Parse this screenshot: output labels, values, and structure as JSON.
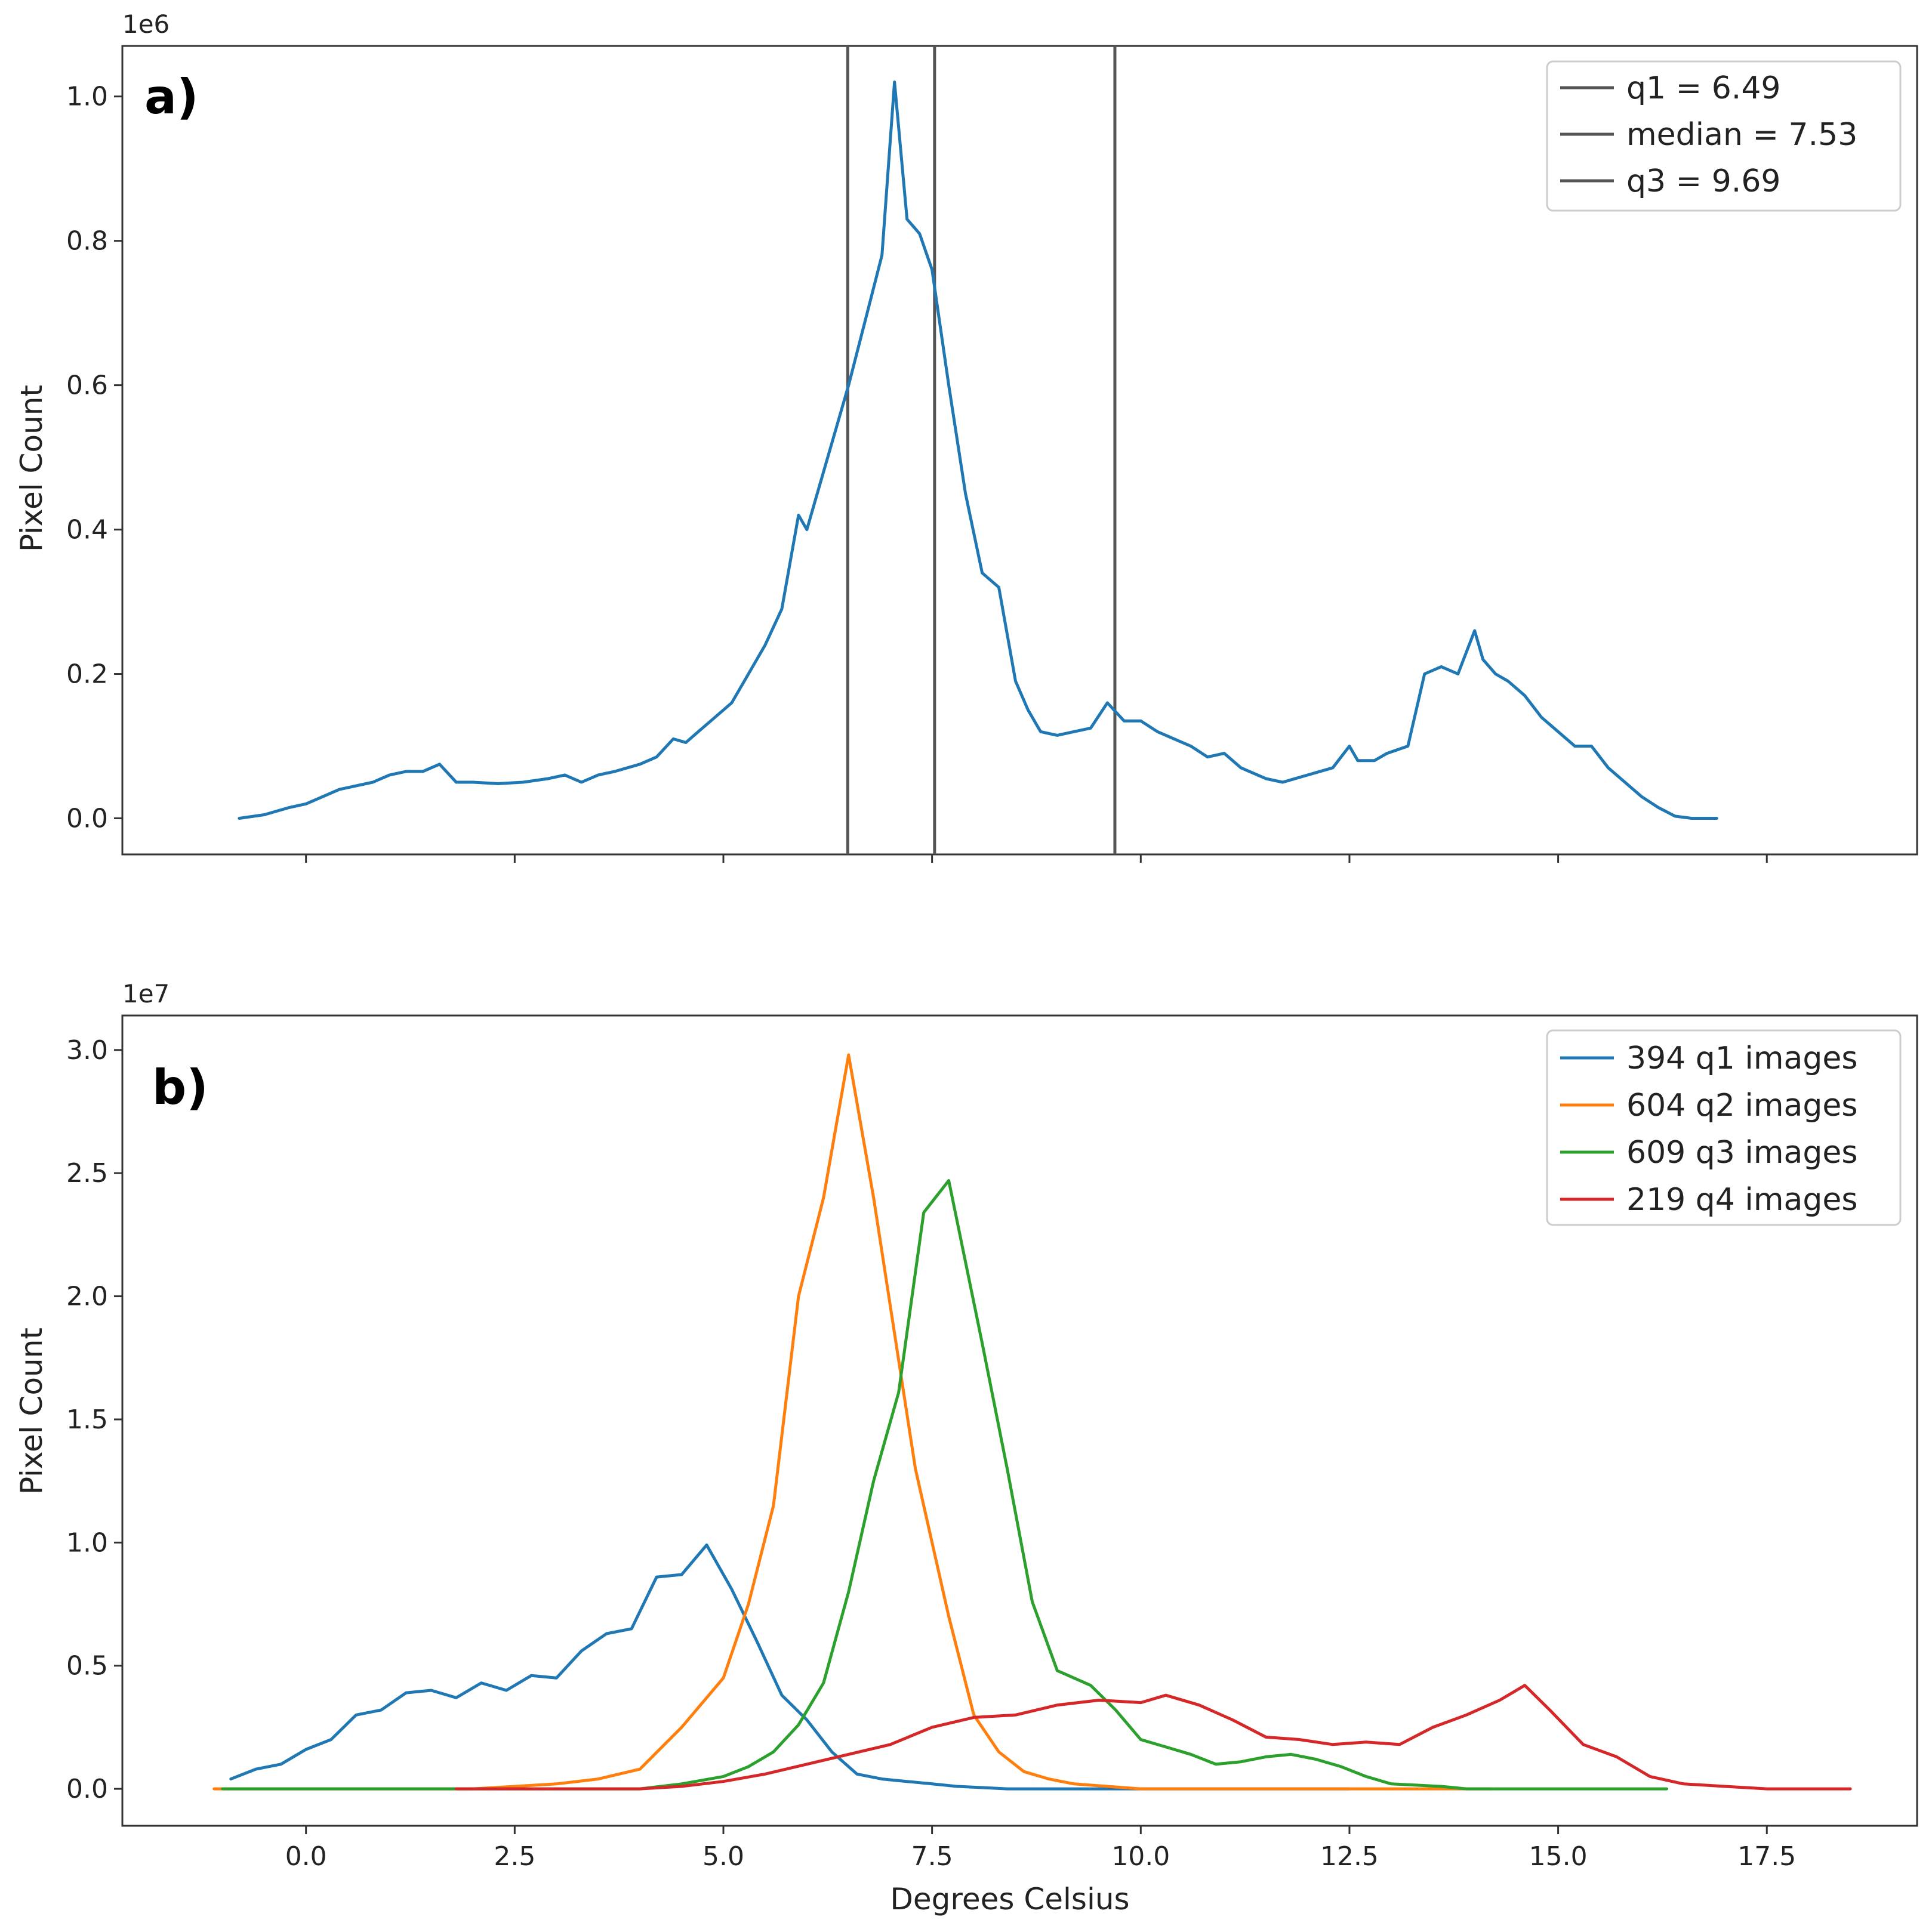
{
  "chart_data": [
    {
      "type": "line",
      "panel_label": "a)",
      "xlabel": "",
      "ylabel": "Pixel Count",
      "y_offset_label": "1e6",
      "xlim": [
        -2.2,
        19.3
      ],
      "ylim": [
        -0.05,
        1.07
      ],
      "y_ticks": [
        0.0,
        0.2,
        0.4,
        0.6,
        0.8,
        1.0
      ],
      "y_tick_labels": [
        "0.0",
        "0.2",
        "0.4",
        "0.6",
        "0.8",
        "1.0"
      ],
      "x_ticks": [
        0.0,
        2.5,
        5.0,
        7.5,
        10.0,
        12.5,
        15.0,
        17.5
      ],
      "show_x_tick_labels": false,
      "legend": {
        "position": "top-right",
        "entries": [
          "q1 = 6.49",
          "median = 7.53",
          "q3 = 9.69"
        ]
      },
      "vlines": [
        {
          "name": "q1",
          "x": 6.49,
          "color": "#555555"
        },
        {
          "name": "median",
          "x": 7.53,
          "color": "#555555"
        },
        {
          "name": "q3",
          "x": 9.69,
          "color": "#555555"
        }
      ],
      "series": [
        {
          "name": "pixel count",
          "color": "#1f77b4",
          "x": [
            -0.8,
            -0.5,
            -0.2,
            0.0,
            0.2,
            0.4,
            0.6,
            0.8,
            1.0,
            1.2,
            1.4,
            1.6,
            1.8,
            2.0,
            2.3,
            2.6,
            2.9,
            3.1,
            3.3,
            3.5,
            3.7,
            4.0,
            4.2,
            4.4,
            4.55,
            4.7,
            4.9,
            5.1,
            5.3,
            5.5,
            5.7,
            5.9,
            6.0,
            6.15,
            6.3,
            6.5,
            6.7,
            6.9,
            7.05,
            7.2,
            7.35,
            7.5,
            7.7,
            7.9,
            8.1,
            8.3,
            8.5,
            8.65,
            8.8,
            9.0,
            9.2,
            9.4,
            9.6,
            9.8,
            10.0,
            10.2,
            10.4,
            10.6,
            10.8,
            11.0,
            11.2,
            11.4,
            11.5,
            11.7,
            12.0,
            12.3,
            12.5,
            12.6,
            12.8,
            12.95,
            13.2,
            13.4,
            13.6,
            13.8,
            14.0,
            14.1,
            14.25,
            14.4,
            14.6,
            14.8,
            15.0,
            15.2,
            15.4,
            15.6,
            15.8,
            16.0,
            16.2,
            16.4,
            16.6,
            16.9
          ],
          "y": [
            0.0,
            0.005,
            0.015,
            0.02,
            0.03,
            0.04,
            0.045,
            0.05,
            0.06,
            0.065,
            0.065,
            0.075,
            0.05,
            0.05,
            0.048,
            0.05,
            0.055,
            0.06,
            0.05,
            0.06,
            0.065,
            0.075,
            0.085,
            0.11,
            0.105,
            0.12,
            0.14,
            0.16,
            0.2,
            0.24,
            0.29,
            0.42,
            0.4,
            0.46,
            0.52,
            0.6,
            0.69,
            0.78,
            1.02,
            0.83,
            0.81,
            0.76,
            0.6,
            0.45,
            0.34,
            0.32,
            0.19,
            0.15,
            0.12,
            0.115,
            0.12,
            0.125,
            0.16,
            0.135,
            0.135,
            0.12,
            0.11,
            0.1,
            0.085,
            0.09,
            0.07,
            0.06,
            0.055,
            0.05,
            0.06,
            0.07,
            0.1,
            0.08,
            0.08,
            0.09,
            0.1,
            0.2,
            0.21,
            0.2,
            0.26,
            0.22,
            0.2,
            0.19,
            0.17,
            0.14,
            0.12,
            0.1,
            0.1,
            0.07,
            0.05,
            0.03,
            0.015,
            0.003,
            0.0,
            0.0
          ]
        }
      ]
    },
    {
      "type": "line",
      "panel_label": "b)",
      "xlabel": "Degrees Celsius",
      "ylabel": "Pixel Count",
      "y_offset_label": "1e7",
      "xlim": [
        -2.2,
        19.3
      ],
      "ylim": [
        -0.15,
        3.14
      ],
      "y_ticks": [
        0.0,
        0.5,
        1.0,
        1.5,
        2.0,
        2.5,
        3.0
      ],
      "y_tick_labels": [
        "0.0",
        "0.5",
        "1.0",
        "1.5",
        "2.0",
        "2.5",
        "3.0"
      ],
      "x_ticks": [
        0.0,
        2.5,
        5.0,
        7.5,
        10.0,
        12.5,
        15.0,
        17.5
      ],
      "x_tick_labels": [
        "0.0",
        "2.5",
        "5.0",
        "7.5",
        "10.0",
        "12.5",
        "15.0",
        "17.5"
      ],
      "show_x_tick_labels": true,
      "legend": {
        "position": "top-right"
      },
      "series": [
        {
          "name": "394 q1 images",
          "color": "#1f77b4",
          "x": [
            -0.9,
            -0.6,
            -0.3,
            0.0,
            0.3,
            0.6,
            0.9,
            1.2,
            1.5,
            1.8,
            2.1,
            2.4,
            2.7,
            3.0,
            3.3,
            3.6,
            3.9,
            4.2,
            4.5,
            4.8,
            5.1,
            5.4,
            5.7,
            6.0,
            6.3,
            6.6,
            6.9,
            7.2,
            7.5,
            7.8,
            8.1,
            8.4,
            8.7,
            9.0,
            9.5,
            10.0,
            10.5,
            11.0,
            11.5,
            12.0,
            12.5
          ],
          "y": [
            0.04,
            0.08,
            0.1,
            0.16,
            0.2,
            0.3,
            0.32,
            0.39,
            0.4,
            0.37,
            0.43,
            0.4,
            0.46,
            0.45,
            0.56,
            0.63,
            0.65,
            0.86,
            0.87,
            0.99,
            0.81,
            0.6,
            0.38,
            0.28,
            0.15,
            0.06,
            0.04,
            0.03,
            0.02,
            0.01,
            0.005,
            0.0,
            0.0,
            0.0,
            0.0,
            0.0,
            0.0,
            0.0,
            0.0,
            0.0,
            0.0
          ]
        },
        {
          "name": "604 q2 images",
          "color": "#ff7f0e",
          "x": [
            -1.1,
            -0.5,
            0.0,
            0.5,
            1.0,
            1.5,
            2.0,
            2.5,
            3.0,
            3.5,
            4.0,
            4.5,
            5.0,
            5.3,
            5.6,
            5.9,
            6.2,
            6.5,
            6.8,
            7.3,
            7.7,
            8.0,
            8.3,
            8.6,
            8.9,
            9.2,
            9.6,
            10.0,
            10.5,
            11.0,
            11.5,
            12.0,
            12.5,
            13.0,
            13.5,
            14.2
          ],
          "y": [
            0.0,
            0.0,
            0.0,
            0.0,
            0.0,
            0.0,
            0.0,
            0.01,
            0.02,
            0.04,
            0.08,
            0.25,
            0.45,
            0.75,
            1.15,
            2.0,
            2.4,
            2.98,
            2.4,
            1.3,
            0.7,
            0.3,
            0.15,
            0.07,
            0.04,
            0.02,
            0.01,
            0.0,
            0.0,
            0.0,
            0.0,
            0.0,
            0.0,
            0.0,
            0.0,
            0.0
          ]
        },
        {
          "name": "609 q3 images",
          "color": "#2ca02c",
          "x": [
            -1.0,
            0.0,
            1.0,
            2.0,
            3.0,
            4.0,
            4.5,
            5.0,
            5.3,
            5.6,
            5.9,
            6.2,
            6.5,
            6.8,
            7.1,
            7.4,
            7.7,
            8.1,
            8.4,
            8.7,
            9.0,
            9.4,
            9.7,
            10.0,
            10.3,
            10.6,
            10.9,
            11.2,
            11.5,
            11.8,
            12.1,
            12.4,
            12.7,
            13.0,
            13.3,
            13.6,
            13.9,
            14.2,
            14.6,
            15.0,
            15.5,
            16.3
          ],
          "y": [
            0.0,
            0.0,
            0.0,
            0.0,
            0.0,
            0.0,
            0.02,
            0.05,
            0.09,
            0.15,
            0.26,
            0.43,
            0.8,
            1.25,
            1.61,
            2.34,
            2.47,
            1.81,
            1.3,
            0.76,
            0.48,
            0.42,
            0.32,
            0.2,
            0.17,
            0.14,
            0.1,
            0.11,
            0.13,
            0.14,
            0.12,
            0.09,
            0.05,
            0.02,
            0.015,
            0.01,
            0.0,
            0.0,
            0.0,
            0.0,
            0.0,
            0.0
          ]
        },
        {
          "name": "219 q4 images",
          "color": "#d62728",
          "x": [
            1.8,
            2.5,
            3.0,
            3.5,
            4.0,
            4.5,
            5.0,
            5.5,
            6.0,
            6.5,
            7.0,
            7.5,
            8.0,
            8.5,
            9.0,
            9.5,
            10.0,
            10.3,
            10.7,
            11.1,
            11.5,
            11.9,
            12.3,
            12.7,
            13.1,
            13.5,
            13.9,
            14.3,
            14.6,
            14.9,
            15.3,
            15.7,
            16.1,
            16.5,
            17.0,
            17.5,
            18.0,
            18.5
          ],
          "y": [
            0.0,
            0.0,
            0.0,
            0.0,
            0.0,
            0.01,
            0.03,
            0.06,
            0.1,
            0.14,
            0.18,
            0.25,
            0.29,
            0.3,
            0.34,
            0.36,
            0.35,
            0.38,
            0.34,
            0.28,
            0.21,
            0.2,
            0.18,
            0.19,
            0.18,
            0.25,
            0.3,
            0.36,
            0.42,
            0.32,
            0.18,
            0.13,
            0.05,
            0.02,
            0.01,
            0.0,
            0.0,
            0.0
          ]
        }
      ]
    }
  ]
}
